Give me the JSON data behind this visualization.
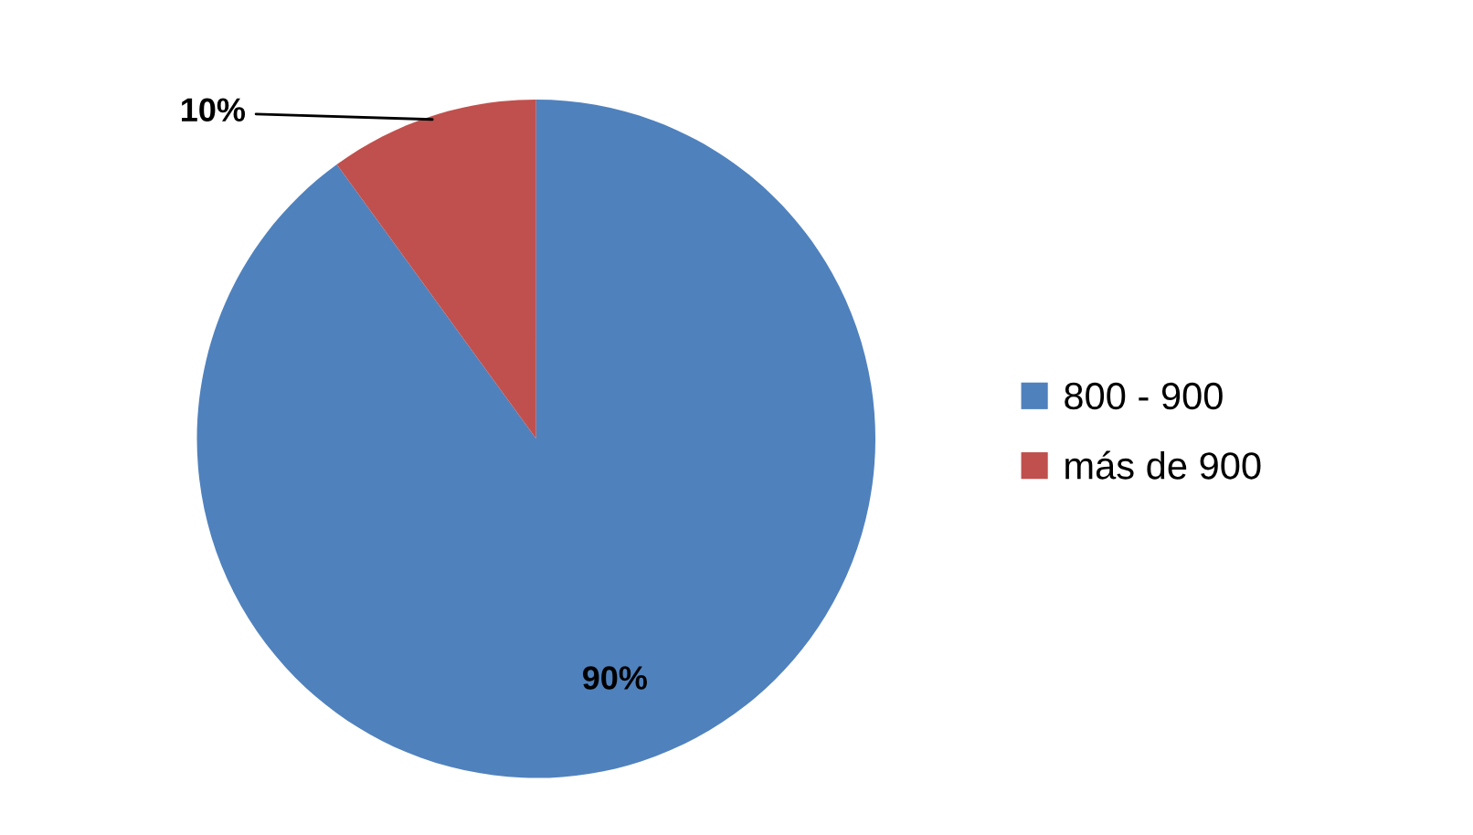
{
  "chart_data": {
    "type": "pie",
    "categories": [
      "800 - 900",
      "más de 900"
    ],
    "values": [
      90,
      10
    ],
    "colors": [
      "#4f81bd",
      "#c0504d"
    ],
    "value_labels": [
      "90%",
      "10%"
    ],
    "legend": "right"
  }
}
